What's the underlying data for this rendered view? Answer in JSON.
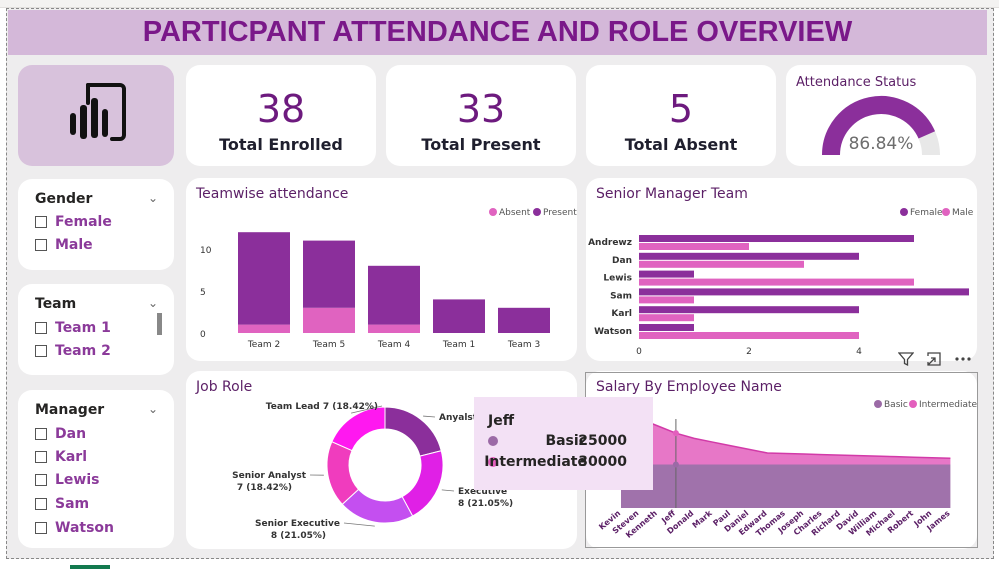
{
  "title": "PARTICPANT ATTENDANCE AND ROLE OVERVIEW",
  "logo": {
    "icon": "power-bi-logo-icon"
  },
  "kpis": {
    "enrolled": {
      "value": "38",
      "label": "Total Enrolled"
    },
    "present": {
      "value": "33",
      "label": "Total Present"
    },
    "absent": {
      "value": "5",
      "label": "Total Absent"
    }
  },
  "gauge": {
    "title": "Attendance Status",
    "value_label": "86.84%",
    "fraction": 0.8684,
    "colors": {
      "fill": "#8b2f9b",
      "track": "#e8e8e8"
    }
  },
  "slicers": {
    "gender": {
      "title": "Gender",
      "options": [
        "Female",
        "Male"
      ]
    },
    "team": {
      "title": "Team",
      "options": [
        "Team 1",
        "Team 2"
      ]
    },
    "manager": {
      "title": "Manager",
      "options": [
        "Dan",
        "Karl",
        "Lewis",
        "Sam",
        "Watson"
      ]
    }
  },
  "colors": {
    "present": "#8b2f9b",
    "absent": "#e063c0",
    "female": "#8b2f9b",
    "male": "#e063c0",
    "basic": "#9b6aa6",
    "intermediate": "#e35fbd",
    "title": "#7a1889"
  },
  "chart_data": [
    {
      "id": "teamwise",
      "type": "bar",
      "title": "Teamwise attendance",
      "stacked": true,
      "categories": [
        "Team 2",
        "Team 5",
        "Team 4",
        "Team 1",
        "Team 3"
      ],
      "series": [
        {
          "name": "Present",
          "values": [
            11,
            8,
            7,
            4,
            3
          ]
        },
        {
          "name": "Absent",
          "values": [
            1,
            3,
            1,
            0,
            0
          ]
        }
      ],
      "yticks": [
        "0",
        "5",
        "10"
      ],
      "ylim": [
        0,
        12.5
      ],
      "legend": "top-right"
    },
    {
      "id": "senior_manager",
      "type": "bar",
      "orientation": "horizontal",
      "title": "Senior Manager Team",
      "categories": [
        "Andrewz",
        "Dan",
        "Lewis",
        "Sam",
        "Karl",
        "Watson"
      ],
      "series": [
        {
          "name": "Female",
          "values": [
            5,
            4,
            1,
            6,
            4,
            1
          ]
        },
        {
          "name": "Male",
          "values": [
            2,
            3,
            5,
            1,
            1,
            4
          ]
        }
      ],
      "xticks": [
        "0",
        "2",
        "4"
      ],
      "xlim": [
        0,
        6
      ],
      "legend": "top-right"
    },
    {
      "id": "job_role",
      "type": "pie",
      "donut": true,
      "title": "Job Role",
      "slices": [
        {
          "label": "Anyalst",
          "value": 8,
          "display": "Anyalst",
          "color": "#8b2f9b"
        },
        {
          "label": "Executive",
          "value": 8,
          "display": "Executive\n8 (21.05%)",
          "color": "#e020e6"
        },
        {
          "label": "Senior Executive",
          "value": 8,
          "display": "Senior Executive\n8 (21.05%)",
          "color": "#c44ff0"
        },
        {
          "label": "Senior Analyst",
          "value": 7,
          "display": "Senior Analyst\n7 (18.42%)",
          "color": "#f03cbe"
        },
        {
          "label": "Team Lead",
          "value": 7,
          "display": "Team Lead 7 (18.42%)",
          "color": "#ff18f0"
        }
      ]
    },
    {
      "id": "salary",
      "type": "area",
      "title": "Salary By Employee Name",
      "x": [
        "Kevin",
        "Steven",
        "Kenneth",
        "Jeff",
        "Donald",
        "Mark",
        "Paul",
        "Daniel",
        "Edward",
        "Thomas",
        "Joseph",
        "Charles",
        "Richard",
        "David",
        "William",
        "Michael",
        "Robert",
        "John",
        "James"
      ],
      "series": [
        {
          "name": "Basic",
          "values": [
            25000,
            25000,
            25000,
            25000,
            25000,
            25000,
            25000,
            25000,
            25000,
            25000,
            25000,
            25000,
            25000,
            25000,
            25000,
            25000,
            25000,
            25000,
            25000
          ]
        },
        {
          "name": "Intermediate",
          "values": [
            48000,
            44000,
            37000,
            30000,
            25000,
            21500,
            18000,
            14500,
            11000,
            10500,
            10000,
            9500,
            9000,
            8500,
            8000,
            7500,
            7000,
            6500,
            6000
          ]
        }
      ],
      "legend": "top-right"
    }
  ],
  "tooltip": {
    "name": "Jeff",
    "rows": [
      {
        "key": "Basic",
        "value": "25000"
      },
      {
        "key": "Intermediate",
        "value": "30000"
      }
    ]
  },
  "visual_header": {
    "icons": [
      "filter-icon",
      "focus-mode-icon",
      "more-options-icon"
    ]
  }
}
